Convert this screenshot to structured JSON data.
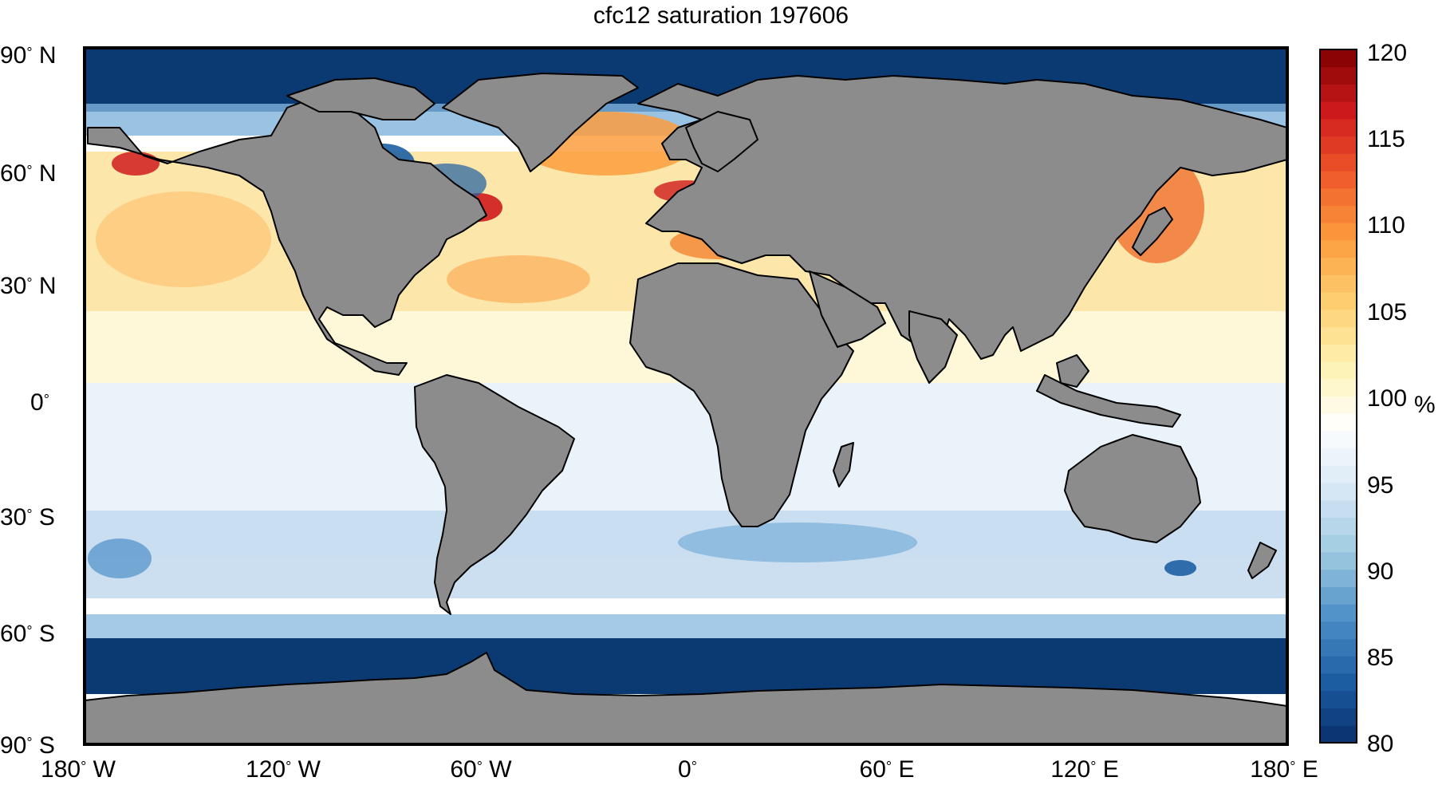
{
  "map": {
    "title": "cfc12 saturation 197606",
    "lat_ticks": [
      {
        "deg": "90",
        "hem": "N"
      },
      {
        "deg": "60",
        "hem": "N"
      },
      {
        "deg": "30",
        "hem": "N"
      },
      {
        "deg": "0",
        "hem": ""
      },
      {
        "deg": "30",
        "hem": "S"
      },
      {
        "deg": "60",
        "hem": "S"
      },
      {
        "deg": "90",
        "hem": "S"
      }
    ],
    "lon_ticks": [
      {
        "deg": "180",
        "hem": "W"
      },
      {
        "deg": "120",
        "hem": "W"
      },
      {
        "deg": "60",
        "hem": "W"
      },
      {
        "deg": "0",
        "hem": ""
      },
      {
        "deg": "60",
        "hem": "E"
      },
      {
        "deg": "120",
        "hem": "E"
      },
      {
        "deg": "180",
        "hem": "E"
      }
    ],
    "degree_symbol": "°",
    "colors": {
      "land": "#8c8c8c",
      "coast": "#000000",
      "frame": "#000000"
    }
  },
  "colorbar": {
    "unit": "%",
    "ticks": [
      "120",
      "115",
      "110",
      "105",
      "100",
      "95",
      "90",
      "85",
      "80"
    ],
    "range": [
      80,
      120
    ],
    "colormap": [
      "#08306b",
      "#1d5fa3",
      "#4d8fc7",
      "#9ecae1",
      "#d6e6f4",
      "#ffffff",
      "#fdf2b2",
      "#fdcf70",
      "#fb9d3e",
      "#ef5a2a",
      "#cf1b1d",
      "#7f0000"
    ]
  }
}
